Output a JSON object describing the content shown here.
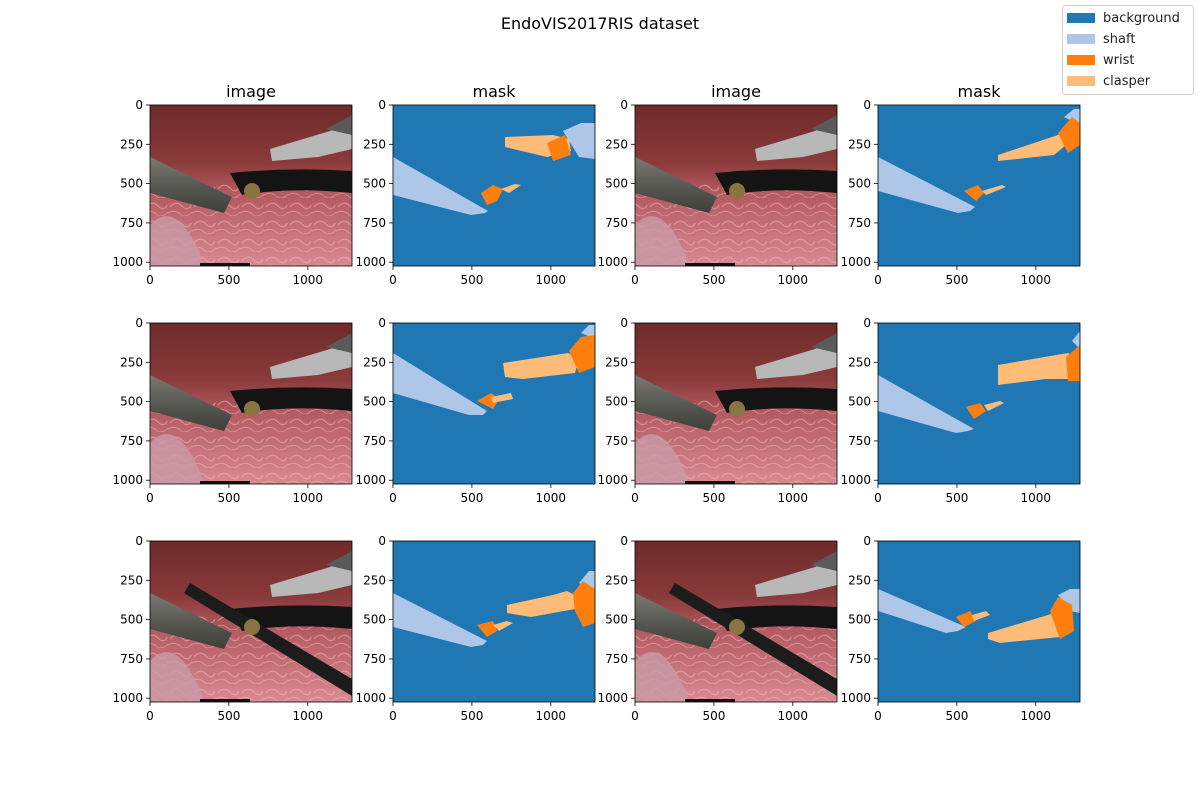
{
  "figure": {
    "title": "EndoVIS2017RIS dataset",
    "column_titles": [
      "image",
      "mask",
      "image",
      "mask"
    ],
    "axis": {
      "xticks": [
        "0",
        "500",
        "1000"
      ],
      "yticks": [
        "0",
        "250",
        "500",
        "750",
        "1000"
      ]
    }
  },
  "legend": {
    "items": [
      {
        "label": "background",
        "color": "#1f77b4"
      },
      {
        "label": "shaft",
        "color": "#aec7e8"
      },
      {
        "label": "wrist",
        "color": "#ff7f0e"
      },
      {
        "label": "clasper",
        "color": "#ffbb78"
      }
    ]
  }
}
